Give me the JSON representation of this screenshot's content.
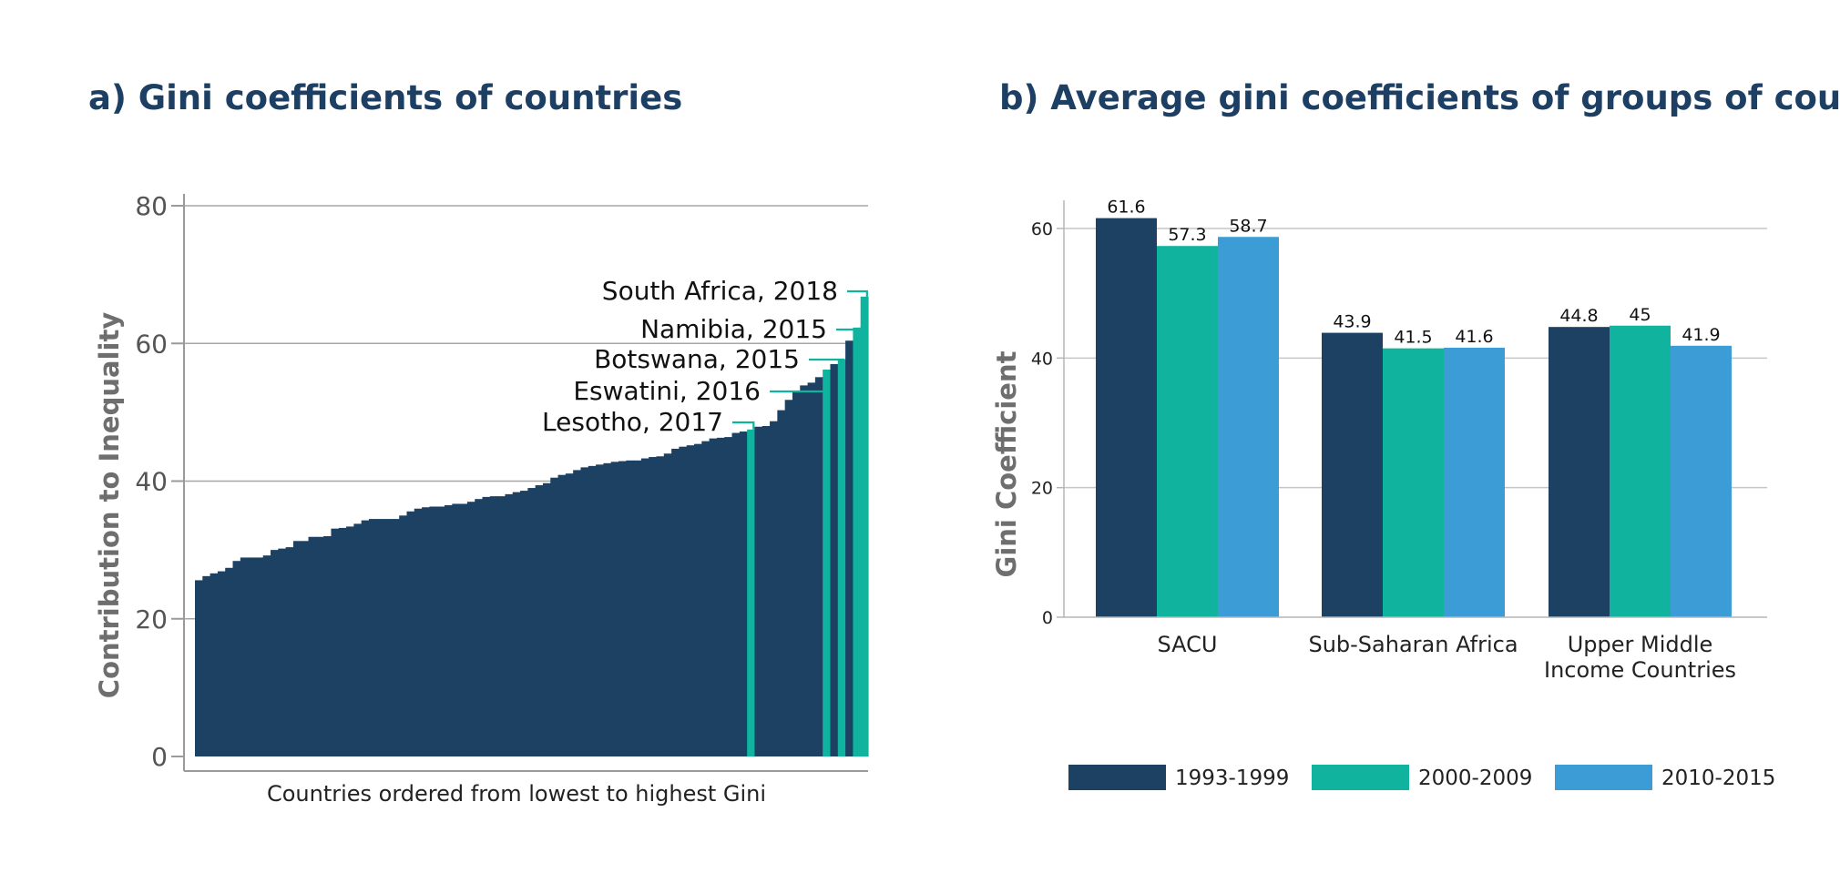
{
  "chart_data": [
    {
      "type": "bar",
      "title": "a) Gini coefficients of countries",
      "xlabel": "Countries ordered from lowest to highest Gini",
      "ylabel": "Contribution to Inequality",
      "ylim": [
        0,
        80
      ],
      "yticks": [
        0,
        20,
        40,
        60,
        80
      ],
      "grid": true,
      "colors": {
        "default": "#1c4163",
        "highlight": "#0fb39e"
      },
      "values": [
        25.6,
        26.2,
        26.6,
        26.9,
        27.4,
        28.4,
        28.9,
        28.9,
        28.9,
        29.2,
        30.0,
        30.2,
        30.4,
        31.3,
        31.3,
        31.9,
        31.9,
        32.0,
        33.1,
        33.2,
        33.4,
        33.8,
        34.3,
        34.5,
        34.5,
        34.5,
        34.5,
        35.0,
        35.6,
        36.0,
        36.2,
        36.3,
        36.3,
        36.5,
        36.7,
        36.7,
        37.0,
        37.4,
        37.7,
        37.8,
        37.8,
        38.1,
        38.4,
        38.6,
        39.0,
        39.4,
        39.7,
        40.5,
        40.9,
        41.1,
        41.6,
        42.0,
        42.2,
        42.4,
        42.6,
        42.8,
        42.9,
        43.0,
        43.0,
        43.3,
        43.5,
        43.6,
        44.0,
        44.7,
        45.0,
        45.2,
        45.4,
        45.8,
        46.2,
        46.3,
        46.4,
        47.0,
        47.2,
        47.5,
        47.9,
        48.0,
        48.7,
        50.3,
        51.8,
        53.0,
        53.9,
        54.3,
        55.1,
        56.2,
        57.0,
        57.7,
        60.4,
        62.3,
        66.8
      ],
      "highlighted": [
        {
          "index": 73,
          "label": "Lesotho, 2017"
        },
        {
          "index": 83,
          "label": "Eswatini, 2016"
        },
        {
          "index": 85,
          "label": "Botswana, 2015"
        },
        {
          "index": 87,
          "label": "Namibia, 2015"
        },
        {
          "index": 88,
          "label": "South Africa, 2018"
        }
      ]
    },
    {
      "type": "bar",
      "title": "b) Average gini coefficients of groups of countries",
      "xlabel": "",
      "ylabel": "Gini Coefficient",
      "ylim": [
        0,
        65
      ],
      "yticks": [
        0,
        20,
        40,
        60
      ],
      "grid": true,
      "legend": "bottom",
      "categories": [
        "SACU",
        "Sub-Saharan Africa",
        "Upper Middle Income Countries"
      ],
      "category_lines": [
        [
          "SACU"
        ],
        [
          "Sub-Saharan Africa"
        ],
        [
          "Upper Middle",
          "Income Countries"
        ]
      ],
      "series": [
        {
          "name": "1993-1999",
          "color": "#1c4163",
          "values": [
            61.6,
            43.9,
            44.8
          ],
          "labels": [
            "61.6",
            "43.9",
            "44.8"
          ]
        },
        {
          "name": "2000-2009",
          "color": "#0fb39e",
          "values": [
            57.3,
            41.5,
            45.0
          ],
          "labels": [
            "57.3",
            "41.5",
            "45"
          ]
        },
        {
          "name": "2010-2015",
          "color": "#3c9cd6",
          "values": [
            58.7,
            41.6,
            41.9
          ],
          "labels": [
            "58.7",
            "41.6",
            "41.9"
          ]
        }
      ]
    }
  ]
}
